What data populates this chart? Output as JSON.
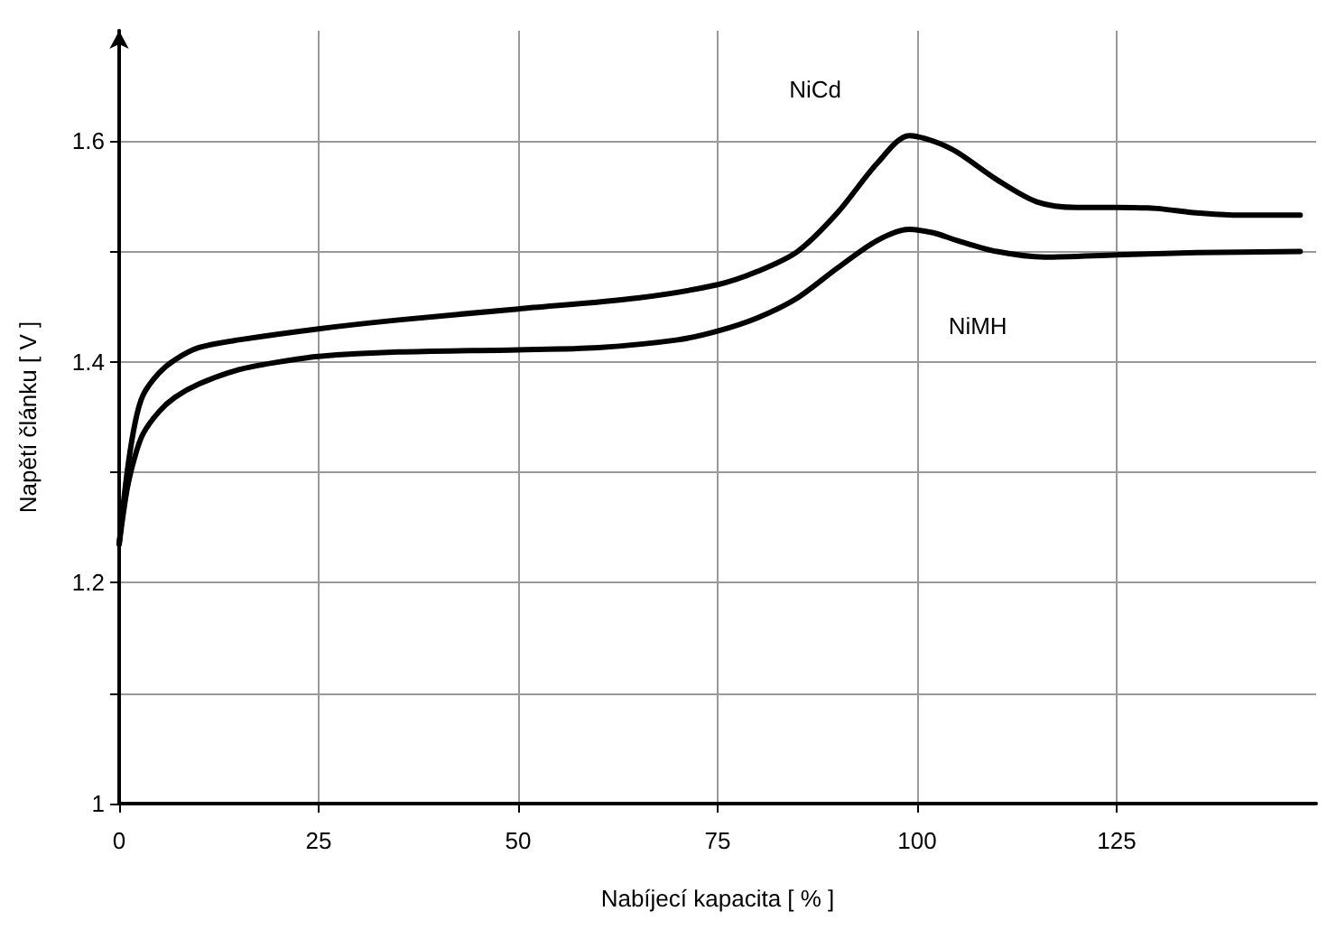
{
  "chart_data": {
    "type": "line",
    "xlabel": "Nabíjecí kapacita [ % ]",
    "ylabel": "Napětí článku [ V ]",
    "xlim": [
      0,
      150
    ],
    "xticks": [
      0,
      25,
      50,
      75,
      100,
      125
    ],
    "ylim": [
      1,
      1.7
    ],
    "yticks": [
      1,
      {
        "value": 1.1,
        "label": null
      },
      1.2,
      {
        "value": 1.3,
        "label": null
      },
      1.4,
      {
        "value": 1.5,
        "label": null
      },
      1.6
    ],
    "grid": true,
    "legend": false,
    "marker": "none",
    "line_style": "solid",
    "series": [
      {
        "name": "NiCd",
        "color": "#000000",
        "x": [
          0,
          1,
          2,
          3,
          5,
          7,
          10,
          15,
          25,
          35,
          50,
          65,
          75,
          80,
          85,
          90,
          95,
          99,
          102,
          105,
          110,
          115,
          120,
          125,
          130,
          135,
          140,
          148
        ],
        "values": [
          1.235,
          1.3,
          1.345,
          1.37,
          1.39,
          1.402,
          1.413,
          1.42,
          1.43,
          1.438,
          1.448,
          1.458,
          1.47,
          1.482,
          1.5,
          1.535,
          1.58,
          1.605,
          1.6,
          1.59,
          1.565,
          1.545,
          1.54,
          1.54,
          1.539,
          1.535,
          1.533,
          1.533
        ]
      },
      {
        "name": "NiMH",
        "color": "#000000",
        "x": [
          0,
          1,
          2,
          3,
          5,
          7,
          10,
          15,
          20,
          25,
          35,
          50,
          60,
          70,
          75,
          80,
          85,
          90,
          95,
          99,
          102,
          105,
          110,
          116,
          125,
          135,
          148
        ],
        "values": [
          1.235,
          1.285,
          1.315,
          1.335,
          1.355,
          1.368,
          1.38,
          1.393,
          1.4,
          1.405,
          1.409,
          1.411,
          1.413,
          1.42,
          1.428,
          1.44,
          1.458,
          1.485,
          1.51,
          1.52,
          1.517,
          1.51,
          1.5,
          1.495,
          1.497,
          1.499,
          1.5
        ]
      }
    ]
  }
}
